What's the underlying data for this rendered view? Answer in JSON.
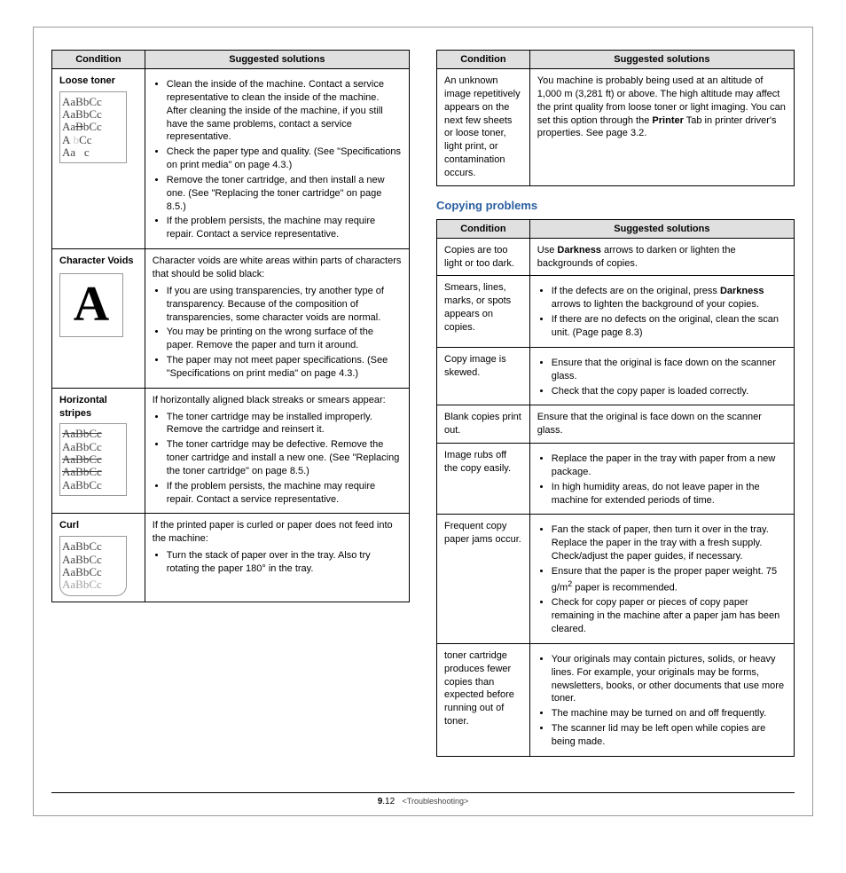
{
  "left_table": {
    "headers": [
      "Condition",
      "Suggested solutions"
    ],
    "rows": [
      {
        "cond_label": "Loose toner",
        "illustration": "aabbcc-loose",
        "intro": "",
        "items": [
          "Clean the inside of the machine. Contact a service representative to clean the inside of the machine. After cleaning the inside of the machine, if you still have the same problems, contact a service representative.",
          "Check the paper type and quality. (See \"Specifications on print media\" on page 4.3.)",
          "Remove the toner cartridge, and then install a new one. (See \"Replacing the toner cartridge\" on page 8.5.)",
          "If the problem persists, the machine may require repair. Contact a service representative."
        ]
      },
      {
        "cond_label": "Character Voids",
        "illustration": "bigA",
        "intro": "Character voids are white areas within parts of characters that should be solid black:",
        "items": [
          "If you are using transparencies, try another type of transparency. Because of the composition of transparencies, some character voids are normal.",
          "You may be printing on the wrong surface of the paper. Remove the paper and turn it around.",
          "The paper may not meet paper specifications. (See \"Specifications on print media\" on page 4.3.)"
        ]
      },
      {
        "cond_label": "Horizontal stripes",
        "illustration": "aabbcc-stripes",
        "intro": "If horizontally aligned black streaks or smears appear:",
        "items": [
          "The toner cartridge may be installed improperly. Remove the cartridge and reinsert it.",
          "The toner cartridge may be defective. Remove the toner cartridge and install a new one. (See \"Replacing the toner cartridge\" on page 8.5.)",
          "If the problem persists, the machine may require repair. Contact a service representative."
        ]
      },
      {
        "cond_label": "Curl",
        "illustration": "aabbcc-curl",
        "intro": "If the printed paper is curled or paper does not feed into the machine:",
        "items": [
          "Turn the stack of paper over in the tray. Also try rotating the paper 180° in the tray."
        ]
      }
    ]
  },
  "right_table1": {
    "headers": [
      "Condition",
      "Suggested solutions"
    ],
    "row": {
      "cond": "An unknown image repetitively appears on the next few sheets or loose toner, light print, or contamination occurs.",
      "sol_html": "You machine is probably being used at an altitude of 1,000 m (3,281 ft) or above. The high altitude may affect the print quality from loose toner or light imaging. You can set this option through the <b>Printer</b> Tab in printer driver's properties. See page 3.2."
    }
  },
  "section_title": "Copying problems",
  "right_table2": {
    "headers": [
      "Condition",
      "Suggested solutions"
    ],
    "rows": [
      {
        "cond": "Copies are too light or too dark.",
        "plain_html": "Use <b>Darkness</b> arrows to darken or lighten the backgrounds of copies."
      },
      {
        "cond": "Smears, lines, marks, or spots appears on copies.",
        "items_html": [
          "If the defects are on the original, press <b>Darkness</b> arrows to lighten the background of your copies.",
          "If there are no defects on the original, clean the scan unit. (Page page  8.3)"
        ]
      },
      {
        "cond": "Copy image is skewed.",
        "items_html": [
          "Ensure that the original is face down on the scanner glass.",
          "Check that the copy paper is loaded correctly."
        ]
      },
      {
        "cond": "Blank copies print out.",
        "plain_html": "Ensure that the original is face down on the scanner glass."
      },
      {
        "cond": "Image rubs off the copy easily.",
        "items_html": [
          "Replace the paper in the tray with paper from a new package.",
          "In high humidity areas, do not leave paper in the machine for extended periods of time."
        ]
      },
      {
        "cond": "Frequent copy paper jams occur.",
        "items_html": [
          "Fan the stack of paper, then turn it over in the tray. Replace the paper in the tray with a fresh supply. Check/adjust the paper guides, if necessary.",
          "Ensure that the paper is the proper paper weight. 75 g/m<sup>2</sup> paper is recommended.",
          "Check for copy paper or pieces of copy paper remaining in the machine after a paper jam has been cleared."
        ]
      },
      {
        "cond": "toner cartridge produces fewer copies than expected before running out of toner.",
        "items_html": [
          "Your originals may contain pictures, solids, or heavy lines. For example, your originals may be forms, newsletters, books, or other documents that use more toner.",
          "The machine may be turned on and off frequently.",
          "The scanner lid may be left open while copies are being made."
        ]
      }
    ]
  },
  "footer": {
    "page_bold": "9",
    "page_rest": ".12",
    "chapter": "<Troubleshooting>"
  },
  "aabb_text": "AaBbCc"
}
